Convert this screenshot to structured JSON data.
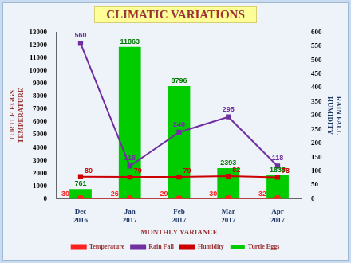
{
  "chart_data": {
    "type": "bar",
    "title": "CLIMATIC VARIATIONS",
    "xlabel": "MONTHLY VARIANCE",
    "ylabel": [
      "TURTLE EGGS",
      "TEMPERATURE"
    ],
    "y2label": [
      "RAIN FALL",
      "HUMIDITY"
    ],
    "categories": [
      [
        "Dec",
        "2016"
      ],
      [
        "Jan",
        "2017"
      ],
      [
        "Feb",
        "2017"
      ],
      [
        "Mar",
        "2017"
      ],
      [
        "Apr",
        "2017"
      ]
    ],
    "series": [
      {
        "name": "Turtle Eggs",
        "type": "bar",
        "color": "#00cc00",
        "values": [
          761,
          11863,
          8796,
          2393,
          1838
        ]
      },
      {
        "name": "Temperature",
        "type": "line",
        "color": "#ff2020",
        "marker": "circle",
        "values": [
          30,
          26,
          29,
          30,
          32
        ]
      },
      {
        "name": "Rain Fall",
        "type": "line",
        "color": "#7030a0",
        "marker": "square",
        "axis": "y2",
        "values": [
          560,
          118,
          240,
          295,
          118
        ]
      },
      {
        "name": "Humidity",
        "type": "line",
        "color": "#cc0000",
        "marker": "square",
        "axis": "y2",
        "values": [
          80,
          79,
          79,
          82,
          78
        ]
      }
    ],
    "ylim": [
      0,
      13000
    ],
    "yticks": [
      0,
      1000,
      2000,
      3000,
      4000,
      5000,
      6000,
      7000,
      8000,
      9000,
      10000,
      11000,
      12000,
      13000
    ],
    "y2lim": [
      0,
      600
    ],
    "y2ticks": [
      0,
      50,
      100,
      150,
      200,
      250,
      300,
      350,
      400,
      450,
      500,
      550,
      600
    ],
    "grid": false,
    "legend": "bottom",
    "data_labels": true
  }
}
